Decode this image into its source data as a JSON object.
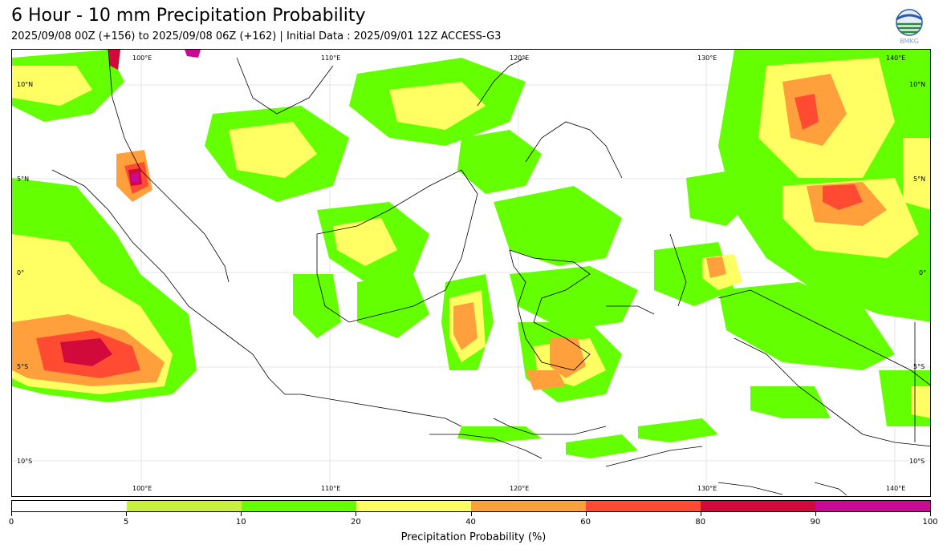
{
  "title": "6 Hour - 10 mm Precipitation Probability",
  "subtitle": "2025/09/08 00Z (+156) to 2025/09/08 06Z (+162) | Initial Data : 2025/09/01 12Z ACCESS-G3",
  "logo": {
    "icon": "bmkg-logo-icon",
    "text": "BMKG"
  },
  "map": {
    "lon_labels": [
      "100°E",
      "110°E",
      "120°E",
      "130°E",
      "140°E"
    ],
    "lat_labels_left": [
      "10°N",
      "5°N",
      "0°",
      "5°S",
      "10°S"
    ],
    "lat_labels_right": [
      "10°N",
      "5°N",
      "0°",
      "5°S",
      "10°S"
    ],
    "extent": {
      "lon": [
        94,
        143
      ],
      "lat": [
        -12,
        12
      ]
    }
  },
  "colorbar": {
    "label": "Precipitation Probability (%)",
    "ticks": [
      "0",
      "5",
      "10",
      "20",
      "40",
      "60",
      "80",
      "90",
      "100"
    ],
    "colors": [
      "#ffffff",
      "#c8f03c",
      "#64ff00",
      "#ffff64",
      "#ffa03c",
      "#ff4b32",
      "#d20a3c",
      "#c80a96"
    ]
  }
}
